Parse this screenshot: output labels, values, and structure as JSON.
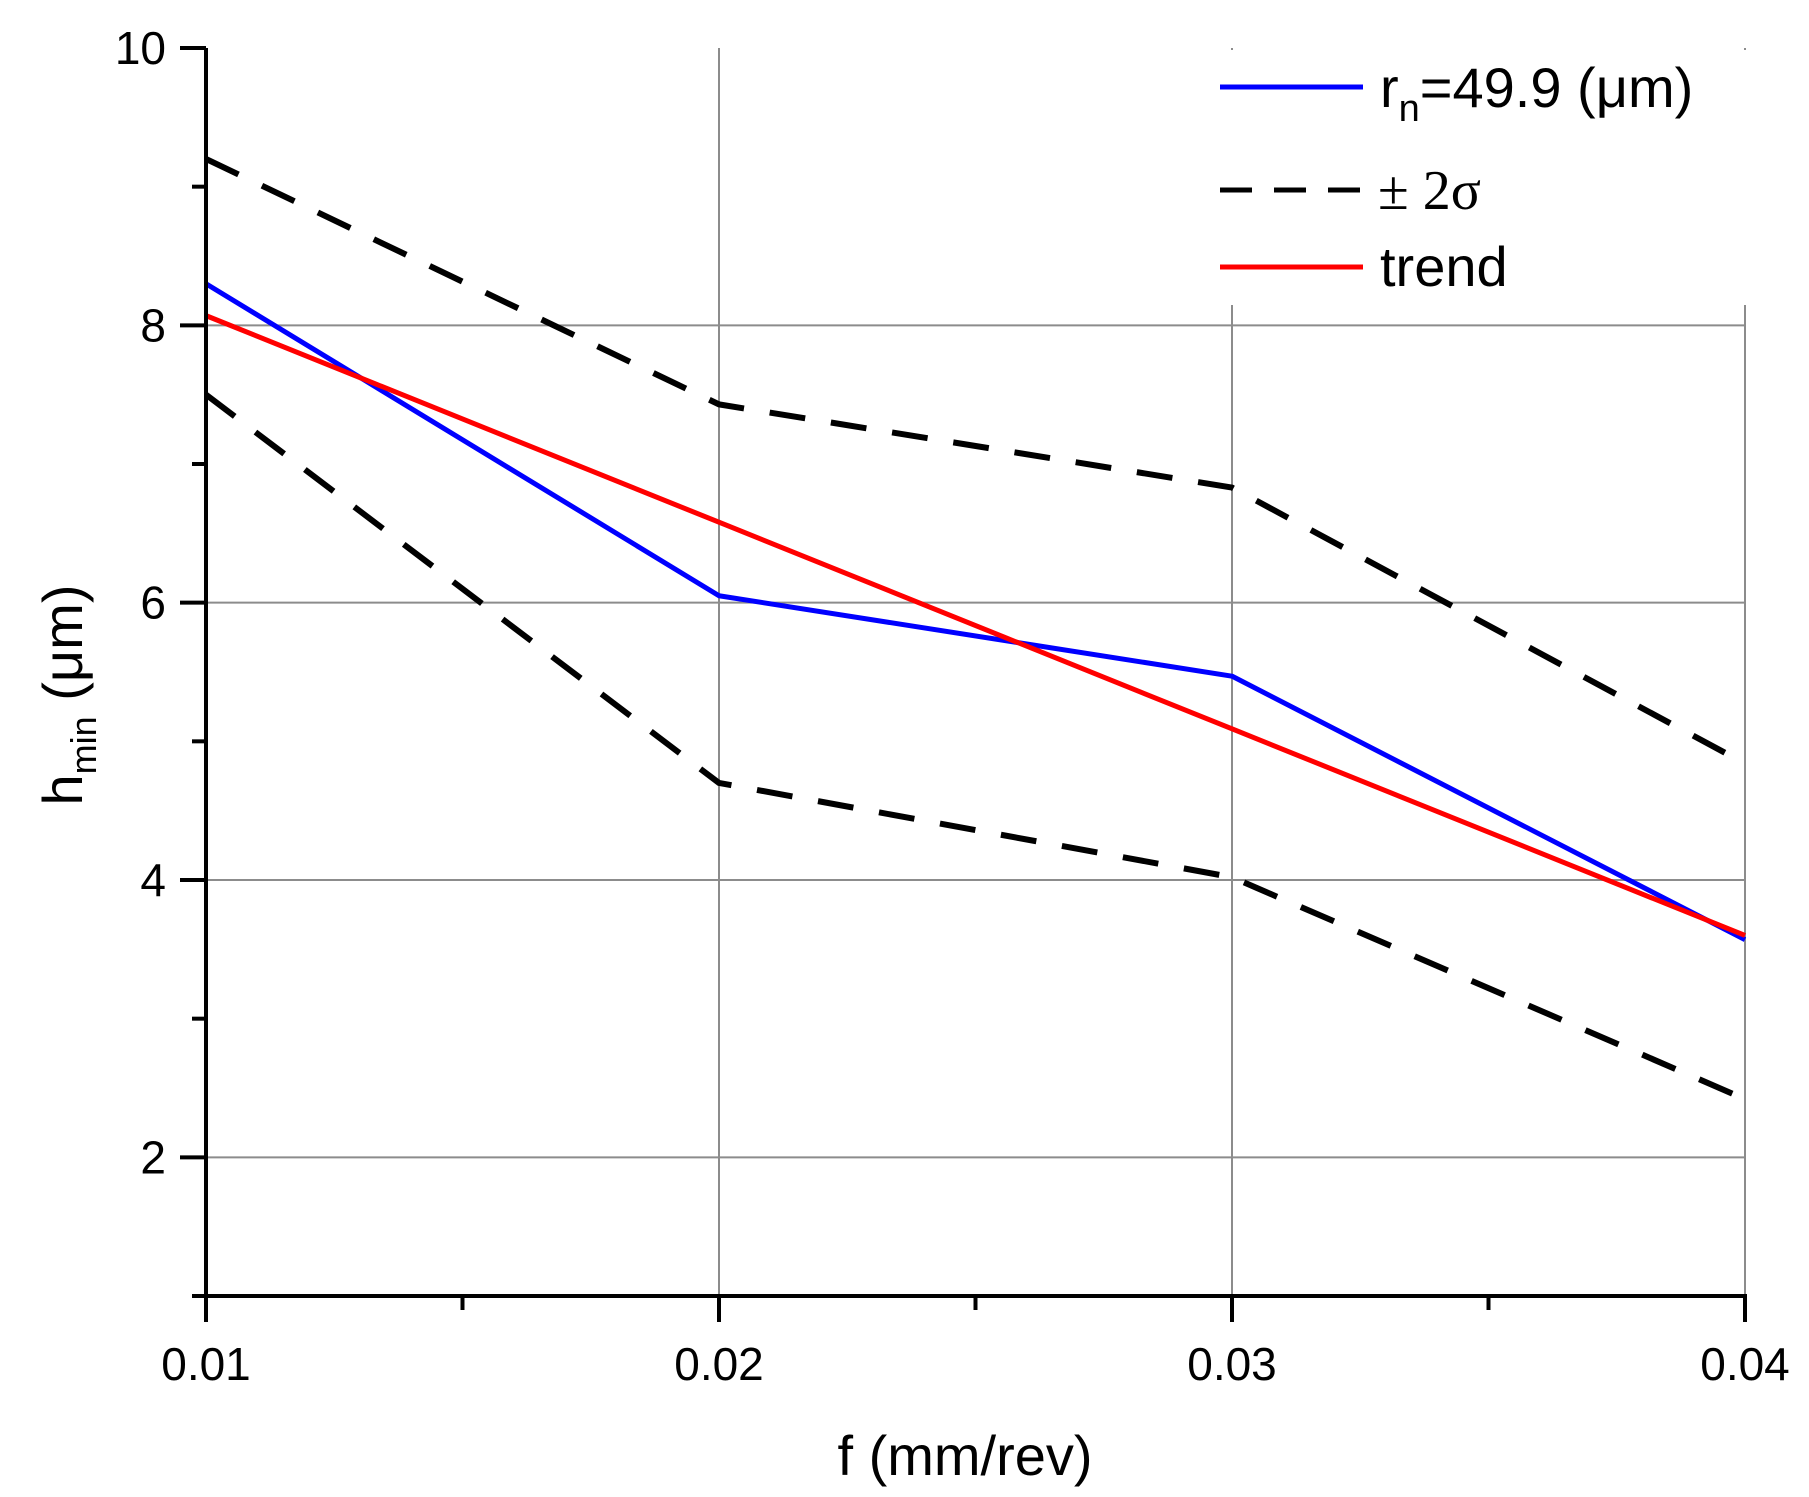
{
  "chart_data": {
    "type": "line",
    "title": "",
    "xlabel": "f (mm/rev)",
    "ylabel": {
      "main": "h",
      "sub": "min",
      "unit": " (μm)"
    },
    "xlim": [
      0.01,
      0.04
    ],
    "ylim": [
      1,
      10
    ],
    "x_ticks": [
      {
        "value": 0.01,
        "label": "0.01"
      },
      {
        "value": 0.02,
        "label": "0.02"
      },
      {
        "value": 0.03,
        "label": "0.03"
      },
      {
        "value": 0.04,
        "label": "0.04"
      }
    ],
    "x_minor_ticks": [
      0.015,
      0.025,
      0.035
    ],
    "y_ticks": [
      {
        "value": 2,
        "label": "2"
      },
      {
        "value": 4,
        "label": "4"
      },
      {
        "value": 6,
        "label": "6"
      },
      {
        "value": 8,
        "label": "8"
      },
      {
        "value": 10,
        "label": "10"
      }
    ],
    "y_minor_ticks": [
      1,
      3,
      5,
      7,
      9
    ],
    "grid": true,
    "legend_position": "top-right",
    "x": [
      0.01,
      0.02,
      0.03,
      0.04
    ],
    "series": [
      {
        "name": "r_n=49.9 (μm)",
        "legend_main": "r",
        "legend_sub": "n",
        "legend_rest": "=49.9 (μm)",
        "color": "#0000ff",
        "style": "solid",
        "values": [
          8.3,
          6.05,
          5.47,
          3.57
        ]
      },
      {
        "name": "+2σ",
        "color": "#000000",
        "style": "dashed",
        "values": [
          9.2,
          7.43,
          6.83,
          4.84
        ]
      },
      {
        "name": "-2σ",
        "color": "#000000",
        "style": "dashed",
        "values": [
          7.5,
          4.7,
          4.02,
          2.42
        ]
      },
      {
        "name": "trend",
        "color": "#ff0000",
        "style": "solid",
        "values": [
          8.07,
          6.58,
          5.09,
          3.6
        ]
      }
    ],
    "legend": [
      {
        "series": "r_n=49.9 (μm)",
        "color": "#0000ff",
        "style": "solid"
      },
      {
        "label": "± 2σ",
        "color": "#000000",
        "style": "dashed"
      },
      {
        "label": "trend",
        "color": "#ff0000",
        "style": "solid"
      }
    ]
  }
}
